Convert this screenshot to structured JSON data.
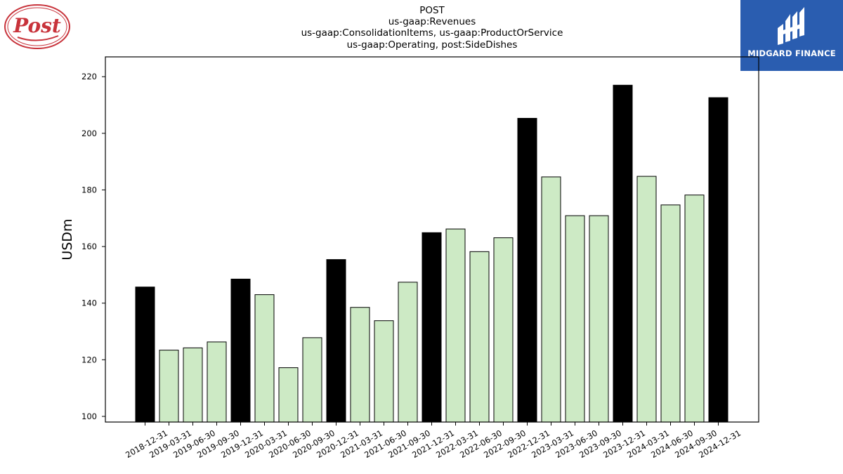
{
  "header": {
    "title_lines": [
      "POST",
      "us-gaap:Revenues",
      "us-gaap:ConsolidationItems, us-gaap:ProductOrService",
      "us-gaap:Operating, post:SideDishes"
    ]
  },
  "logos": {
    "left_text": "Post",
    "right_text": "MIDGARD FINANCE",
    "right_bg": "#2a5db0"
  },
  "chart_data": {
    "type": "bar",
    "title": "POST\nus-gaap:Revenues\nus-gaap:ConsolidationItems, us-gaap:ProductOrService\nus-gaap:Operating, post:SideDishes",
    "xlabel": "",
    "ylabel": "USDm",
    "ylim": [
      98,
      227
    ],
    "yticks": [
      100,
      120,
      140,
      160,
      180,
      200,
      220
    ],
    "grid": false,
    "legend": "none",
    "colors": {
      "annual": "#000000",
      "quarterly": "#cdeac5",
      "edge": "#000000"
    },
    "categories": [
      "2018-12-31",
      "2019-03-31",
      "2019-06-30",
      "2019-09-30",
      "2019-12-31",
      "2020-03-31",
      "2020-06-30",
      "2020-09-30",
      "2020-12-31",
      "2021-03-31",
      "2021-06-30",
      "2021-09-30",
      "2021-12-31",
      "2022-03-31",
      "2022-06-30",
      "2022-09-30",
      "2022-12-31",
      "2023-03-31",
      "2023-06-30",
      "2023-09-30",
      "2023-12-31",
      "2024-03-31",
      "2024-06-30",
      "2024-09-30",
      "2024-12-31"
    ],
    "values": [
      145.7,
      123.4,
      124.2,
      126.3,
      148.5,
      143.0,
      117.2,
      127.8,
      155.4,
      138.5,
      133.8,
      147.4,
      164.9,
      166.2,
      158.2,
      163.1,
      205.3,
      184.6,
      170.9,
      170.9,
      217.0,
      184.8,
      174.7,
      178.2,
      212.6
    ],
    "bar_kind": [
      "annual",
      "quarterly",
      "quarterly",
      "quarterly",
      "annual",
      "quarterly",
      "quarterly",
      "quarterly",
      "annual",
      "quarterly",
      "quarterly",
      "quarterly",
      "annual",
      "quarterly",
      "quarterly",
      "quarterly",
      "annual",
      "quarterly",
      "quarterly",
      "quarterly",
      "annual",
      "quarterly",
      "quarterly",
      "quarterly",
      "annual"
    ]
  }
}
